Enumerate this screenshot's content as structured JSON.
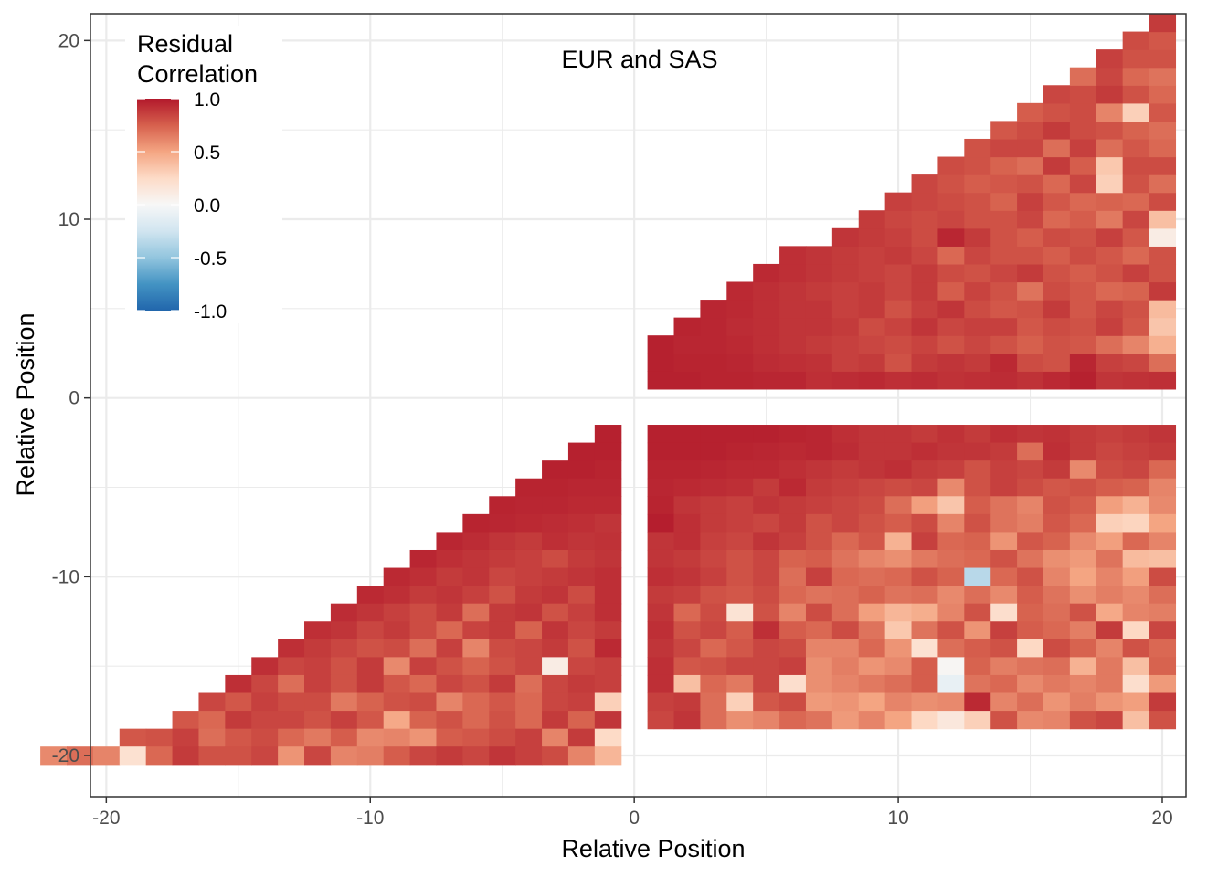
{
  "chart_data": {
    "type": "heatmap",
    "annotation": "EUR and SAS",
    "xlabel": "Relative Position",
    "ylabel": "Relative Position",
    "xlim": [
      -20.6,
      20.9
    ],
    "ylim": [
      -22.3,
      21.5
    ],
    "x_ticks": [
      -20,
      -10,
      0,
      10,
      20
    ],
    "y_ticks": [
      -20,
      -10,
      0,
      10,
      20
    ],
    "x_tick_labels": [
      "-20",
      "-10",
      "0",
      "10",
      "20"
    ],
    "y_tick_labels": [
      "-20",
      "-10",
      "0",
      "10",
      "20"
    ],
    "grid": true,
    "legend": {
      "title_line1": "Residual",
      "title_line2": "Correlation",
      "position": "top-left",
      "colors": [
        "#2166ac",
        "#4393c3",
        "#92c5de",
        "#d1e5f0",
        "#f7f7f7",
        "#fddbc7",
        "#f4a582",
        "#d6604d",
        "#b2182b"
      ],
      "limits": [
        -1,
        1
      ],
      "breaks": [
        1.0,
        0.5,
        0.0,
        -0.5,
        -1.0
      ],
      "break_labels": [
        "1.0",
        "0.5",
        "0.0",
        "-0.5",
        "-1.0"
      ]
    },
    "panels": [
      {
        "name": "upper-right",
        "start_y": 1,
        "rows": [
          [
            0.97,
            0.97,
            0.96,
            0.96,
            0.95,
            0.95,
            0.92,
            0.93,
            0.94,
            0.92,
            0.93,
            0.91,
            0.92,
            0.93,
            0.91,
            0.94,
            0.97,
            0.9,
            0.91,
            0.92
          ],
          [
            0.97,
            0.96,
            0.96,
            0.95,
            0.93,
            0.92,
            0.91,
            0.86,
            0.88,
            0.8,
            0.88,
            0.9,
            0.88,
            0.94,
            0.82,
            0.8,
            0.95,
            0.86,
            0.84,
            0.7
          ],
          [
            0.97,
            0.95,
            0.95,
            0.94,
            0.92,
            0.9,
            0.88,
            0.86,
            0.84,
            0.82,
            0.85,
            0.8,
            0.84,
            0.8,
            0.75,
            0.8,
            0.78,
            0.7,
            0.62,
            0.45
          ],
          [
            0.96,
            0.95,
            0.93,
            0.92,
            0.9,
            0.9,
            0.88,
            0.82,
            0.85,
            0.9,
            0.84,
            0.86,
            0.86,
            0.78,
            0.82,
            0.8,
            0.86,
            0.78,
            0.35
          ],
          [
            0.95,
            0.94,
            0.92,
            0.9,
            0.9,
            0.86,
            0.88,
            0.8,
            0.86,
            0.9,
            0.82,
            0.78,
            0.8,
            0.88,
            0.78,
            0.84,
            0.8,
            0.4
          ],
          [
            0.94,
            0.92,
            0.9,
            0.88,
            0.86,
            0.88,
            0.84,
            0.88,
            0.76,
            0.85,
            0.8,
            0.68,
            0.82,
            0.78,
            0.72,
            0.74,
            0.88
          ],
          [
            0.94,
            0.92,
            0.9,
            0.88,
            0.86,
            0.84,
            0.88,
            0.82,
            0.8,
            0.84,
            0.88,
            0.8,
            0.76,
            0.8,
            0.86,
            0.8
          ],
          [
            0.92,
            0.9,
            0.88,
            0.86,
            0.88,
            0.84,
            0.72,
            0.84,
            0.8,
            0.8,
            0.76,
            0.82,
            0.78,
            0.72,
            0.8
          ],
          [
            0.9,
            0.88,
            0.86,
            0.82,
            0.95,
            0.88,
            0.8,
            0.76,
            0.82,
            0.8,
            0.86,
            0.78,
            0.1
          ],
          [
            0.88,
            0.84,
            0.82,
            0.84,
            0.8,
            0.8,
            0.84,
            0.72,
            0.76,
            0.66,
            0.84,
            0.38
          ],
          [
            0.86,
            0.84,
            0.82,
            0.8,
            0.74,
            0.86,
            0.78,
            0.72,
            0.74,
            0.72,
            0.82
          ],
          [
            0.84,
            0.8,
            0.76,
            0.78,
            0.8,
            0.72,
            0.84,
            0.3,
            0.8,
            0.7
          ],
          [
            0.82,
            0.8,
            0.74,
            0.7,
            0.88,
            0.76,
            0.34,
            0.82,
            0.82
          ],
          [
            0.8,
            0.84,
            0.84,
            0.7,
            0.86,
            0.7,
            0.78,
            0.72
          ],
          [
            0.78,
            0.82,
            0.88,
            0.82,
            0.8,
            0.74,
            0.7
          ],
          [
            0.76,
            0.8,
            0.82,
            0.62,
            0.3,
            0.78
          ],
          [
            0.84,
            0.82,
            0.88,
            0.8,
            0.72
          ],
          [
            0.7,
            0.84,
            0.72,
            0.68
          ],
          [
            0.86,
            0.8,
            0.8
          ],
          [
            0.82,
            0.78
          ],
          [
            0.88
          ]
        ]
      },
      {
        "name": "lower-left",
        "start_y": -2,
        "rows": [
          [
            0.97
          ],
          [
            0.97,
            0.97
          ],
          [
            0.97,
            0.97,
            0.96
          ],
          [
            0.96,
            0.96,
            0.95,
            0.95
          ],
          [
            0.96,
            0.95,
            0.95,
            0.94,
            0.94
          ],
          [
            0.96,
            0.95,
            0.94,
            0.93,
            0.92,
            0.9
          ],
          [
            0.95,
            0.93,
            0.9,
            0.88,
            0.92,
            0.9,
            0.91
          ],
          [
            0.95,
            0.92,
            0.9,
            0.88,
            0.86,
            0.82,
            0.88,
            0.9
          ],
          [
            0.94,
            0.92,
            0.88,
            0.9,
            0.84,
            0.86,
            0.88,
            0.9,
            0.92
          ],
          [
            0.94,
            0.92,
            0.88,
            0.9,
            0.86,
            0.8,
            0.88,
            0.9,
            0.82,
            0.92
          ],
          [
            0.93,
            0.9,
            0.86,
            0.82,
            0.88,
            0.7,
            0.88,
            0.9,
            0.8,
            0.86,
            0.92
          ],
          [
            0.92,
            0.9,
            0.84,
            0.88,
            0.82,
            0.72,
            0.85,
            0.88,
            0.74,
            0.9,
            0.84,
            0.88
          ],
          [
            0.92,
            0.88,
            0.84,
            0.8,
            0.82,
            0.7,
            0.86,
            0.62,
            0.82,
            0.84,
            0.88,
            0.8,
            0.94
          ],
          [
            0.92,
            0.84,
            0.86,
            0.8,
            0.88,
            0.6,
            0.86,
            0.8,
            0.74,
            0.8,
            0.84,
            0.1,
            0.84,
            0.86
          ],
          [
            0.92,
            0.84,
            0.7,
            0.86,
            0.8,
            0.88,
            0.78,
            0.72,
            0.84,
            0.8,
            0.88,
            0.7,
            0.84,
            0.88,
            0.86
          ],
          [
            0.84,
            0.78,
            0.86,
            0.82,
            0.82,
            0.66,
            0.74,
            0.8,
            0.82,
            0.62,
            0.72,
            0.78,
            0.72,
            0.84,
            0.86,
            0.3
          ],
          [
            0.78,
            0.72,
            0.88,
            0.84,
            0.84,
            0.8,
            0.86,
            0.78,
            0.48,
            0.74,
            0.8,
            0.72,
            0.8,
            0.72,
            0.88,
            0.74,
            0.9
          ],
          [
            0.78,
            0.8,
            0.86,
            0.7,
            0.78,
            0.82,
            0.72,
            0.66,
            0.76,
            0.6,
            0.62,
            0.56,
            0.76,
            0.78,
            0.82,
            0.86,
            0.62,
            0.88,
            0.25
          ],
          [
            0.6,
            0.7,
            0.62,
            0.2,
            0.72,
            0.88,
            0.8,
            0.8,
            0.84,
            0.56,
            0.84,
            0.62,
            0.64,
            0.76,
            0.84,
            0.88,
            0.84,
            0.9,
            0.86,
            0.82,
            0.62,
            0.42
          ]
        ]
      },
      {
        "name": "lower-right",
        "start_y": -2,
        "rows": [
          [
            0.97,
            0.97,
            0.97,
            0.97,
            0.97,
            0.96,
            0.95,
            0.92,
            0.9,
            0.9,
            0.88,
            0.91,
            0.88,
            0.92,
            0.9,
            0.91,
            0.88,
            0.86,
            0.88,
            0.9
          ],
          [
            0.97,
            0.97,
            0.97,
            0.96,
            0.95,
            0.94,
            0.95,
            0.93,
            0.9,
            0.9,
            0.92,
            0.9,
            0.9,
            0.88,
            0.7,
            0.92,
            0.88,
            0.84,
            0.86,
            0.88
          ],
          [
            0.96,
            0.96,
            0.95,
            0.94,
            0.94,
            0.92,
            0.9,
            0.88,
            0.9,
            0.92,
            0.88,
            0.86,
            0.8,
            0.86,
            0.84,
            0.88,
            0.6,
            0.82,
            0.84,
            0.72
          ],
          [
            0.95,
            0.94,
            0.93,
            0.92,
            0.88,
            0.94,
            0.88,
            0.86,
            0.84,
            0.82,
            0.84,
            0.6,
            0.8,
            0.86,
            0.82,
            0.78,
            0.8,
            0.76,
            0.74,
            0.62
          ],
          [
            0.96,
            0.9,
            0.88,
            0.86,
            0.9,
            0.88,
            0.86,
            0.84,
            0.82,
            0.7,
            0.52,
            0.35,
            0.76,
            0.68,
            0.62,
            0.8,
            0.76,
            0.52,
            0.44,
            0.6
          ],
          [
            0.98,
            0.92,
            0.88,
            0.86,
            0.84,
            0.88,
            0.8,
            0.84,
            0.8,
            0.76,
            0.82,
            0.62,
            0.8,
            0.68,
            0.64,
            0.78,
            0.72,
            0.3,
            0.28,
            0.5
          ],
          [
            0.9,
            0.92,
            0.86,
            0.84,
            0.9,
            0.86,
            0.8,
            0.72,
            0.78,
            0.44,
            0.86,
            0.72,
            0.74,
            0.56,
            0.78,
            0.74,
            0.6,
            0.52,
            0.72,
            0.62
          ],
          [
            0.9,
            0.88,
            0.84,
            0.8,
            0.84,
            0.74,
            0.76,
            0.68,
            0.62,
            0.58,
            0.66,
            0.7,
            0.72,
            0.8,
            0.68,
            0.58,
            0.54,
            0.68,
            0.4,
            0.38
          ],
          [
            0.92,
            0.9,
            0.86,
            0.8,
            0.84,
            0.7,
            0.86,
            0.72,
            0.7,
            0.72,
            0.8,
            0.74,
            -0.35,
            0.72,
            0.8,
            0.62,
            0.5,
            0.62,
            0.52,
            0.82
          ],
          [
            0.88,
            0.86,
            0.8,
            0.78,
            0.82,
            0.72,
            0.68,
            0.7,
            0.74,
            0.68,
            0.7,
            0.6,
            0.7,
            0.6,
            0.76,
            0.68,
            0.58,
            0.64,
            0.6,
            0.7
          ],
          [
            0.9,
            0.72,
            0.82,
            0.18,
            0.8,
            0.62,
            0.82,
            0.7,
            0.52,
            0.42,
            0.46,
            0.62,
            0.8,
            0.22,
            0.74,
            0.7,
            0.8,
            0.48,
            0.62,
            0.64
          ],
          [
            0.92,
            0.8,
            0.84,
            0.76,
            0.92,
            0.76,
            0.72,
            0.82,
            0.68,
            0.34,
            0.68,
            0.8,
            0.56,
            0.86,
            0.76,
            0.72,
            0.64,
            0.88,
            0.26,
            0.84
          ],
          [
            0.9,
            0.84,
            0.72,
            0.78,
            0.84,
            0.82,
            0.62,
            0.62,
            0.72,
            0.56,
            0.2,
            0.7,
            0.76,
            0.8,
            0.26,
            0.82,
            0.74,
            0.62,
            0.8,
            0.72
          ],
          [
            0.92,
            0.78,
            0.8,
            0.84,
            0.84,
            0.86,
            0.58,
            0.64,
            0.56,
            0.6,
            0.76,
            0.02,
            0.74,
            0.64,
            0.68,
            0.7,
            0.44,
            0.66,
            0.38,
            0.74
          ],
          [
            0.92,
            0.38,
            0.72,
            0.66,
            0.84,
            0.22,
            0.58,
            0.62,
            0.66,
            0.7,
            0.76,
            -0.1,
            0.68,
            0.72,
            0.6,
            0.66,
            0.62,
            0.66,
            0.22,
            0.54
          ],
          [
            0.86,
            0.88,
            0.7,
            0.3,
            0.78,
            0.82,
            0.54,
            0.56,
            0.5,
            0.62,
            0.58,
            0.6,
            0.94,
            0.62,
            0.7,
            0.56,
            0.64,
            0.56,
            0.52,
            0.88
          ],
          [
            0.84,
            0.9,
            0.7,
            0.58,
            0.62,
            0.72,
            0.68,
            0.54,
            0.62,
            0.5,
            0.26,
            0.14,
            0.3,
            0.8,
            0.6,
            0.62,
            0.8,
            0.84,
            0.38,
            0.8
          ]
        ]
      }
    ]
  }
}
